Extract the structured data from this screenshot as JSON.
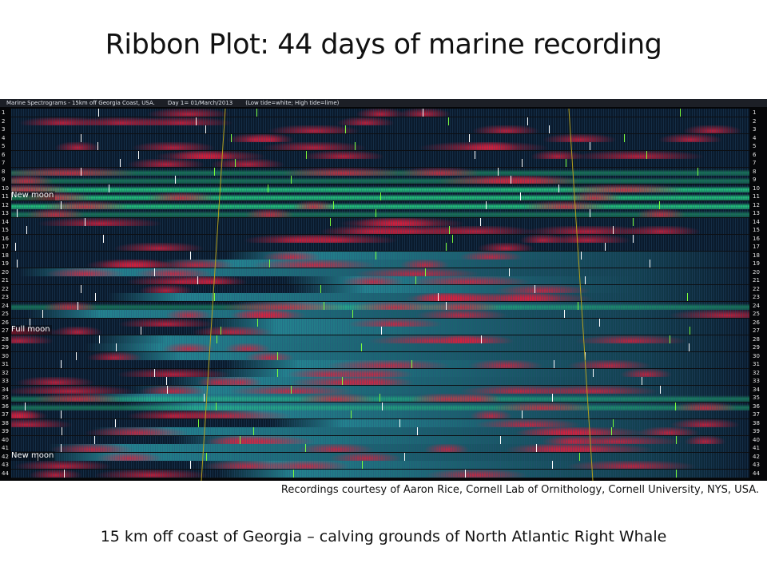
{
  "slide": {
    "title": "Ribbon Plot: 44 days of marine recording",
    "credit": "Recordings courtesy of Aaron Rice, Cornell Lab of Ornithology, Cornell University, NYS, USA.",
    "caption": "15 km off coast of Georgia – calving grounds of North Atlantic Right Whale"
  },
  "figure": {
    "header_parts": [
      "Marine Spectrograms - 15km off Georgia Coast, USA.",
      "Day 1= 01/March/2013",
      "(Low tide=white; High tide=lime)"
    ],
    "day_count": 44,
    "moon_labels": [
      {
        "text": "New moon",
        "day": 11
      },
      {
        "text": "Full moon",
        "day": 27
      },
      {
        "text": "New moon",
        "day": 42
      }
    ],
    "colors": {
      "background": "#050608",
      "base_ribbon": "#0a1a2c",
      "red_band": "#d0203a",
      "green_band": "#28e08a",
      "cyan_band": "#38d8e0",
      "low_tide_tick": "#ffffff",
      "high_tide_tick": "#7cff3c",
      "moon_line": "#b5a11c"
    }
  }
}
